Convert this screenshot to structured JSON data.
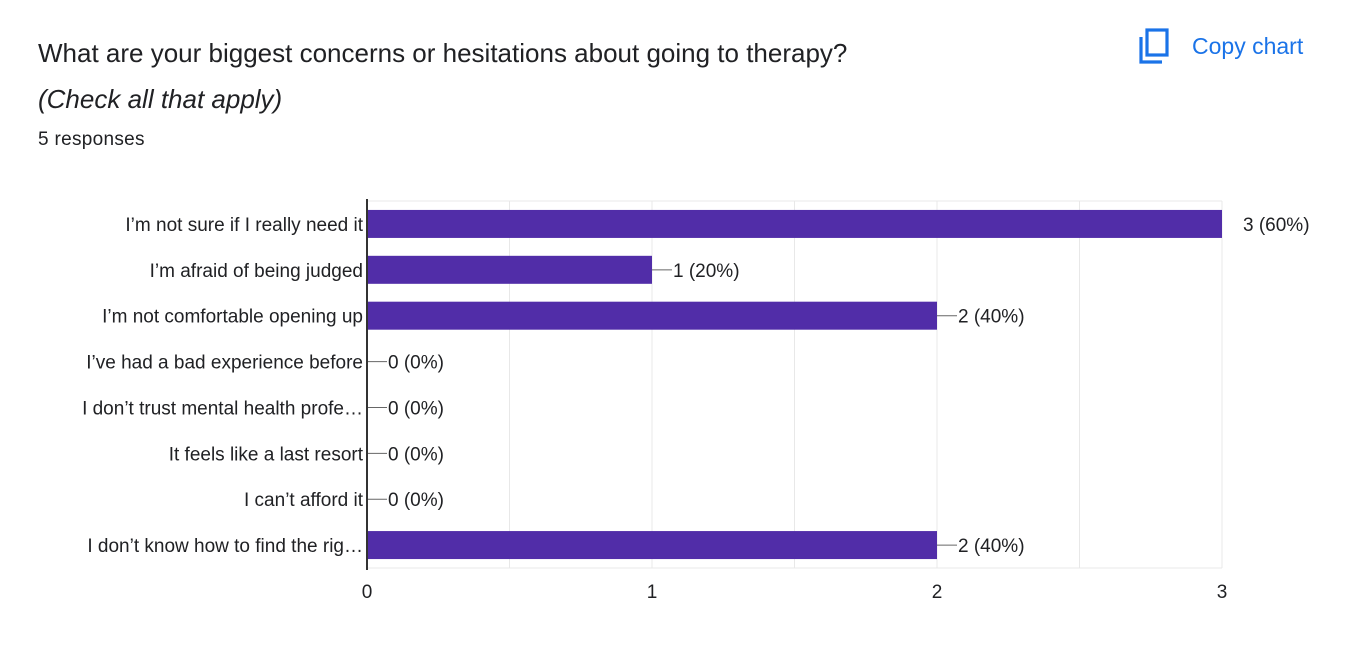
{
  "header": {
    "title": "What are your biggest concerns or hesitations about going to therapy?",
    "subtitle": "(Check all that apply)",
    "responses": "5 responses",
    "copy_label": "Copy chart"
  },
  "colors": {
    "bar": "#512da8",
    "accent": "#1a73e8",
    "grid": "#e8e8e8",
    "axis": "#333333"
  },
  "icons": {
    "copy": "copy-icon"
  },
  "chart_data": {
    "type": "bar",
    "orientation": "horizontal",
    "categories": [
      "I’m not sure if I really need it",
      "I’m afraid of being judged",
      "I’m not comfortable opening up",
      "I’ve had a bad experience before",
      "I don’t trust mental health profe…",
      "It feels like a last resort",
      "I can’t afford it",
      "I don’t know how to find the rig…"
    ],
    "values": [
      3,
      1,
      2,
      0,
      0,
      0,
      0,
      2
    ],
    "data_labels": [
      "3 (60%)",
      "1 (20%)",
      "2 (40%)",
      "0 (0%)",
      "0 (0%)",
      "0 (0%)",
      "0 (0%)",
      "2 (40%)"
    ],
    "xlim": [
      0,
      3
    ],
    "xticks": [
      "0",
      "1",
      "2",
      "3"
    ],
    "grid": true
  }
}
